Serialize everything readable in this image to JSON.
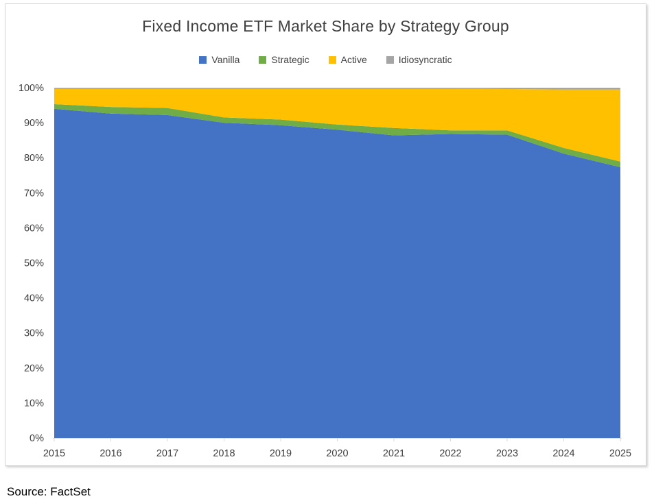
{
  "source_note": "Source: FactSet",
  "chart_data": {
    "type": "area",
    "stacked": true,
    "stacked_to_100_percent": true,
    "title": "Fixed Income ETF Market Share by Strategy Group",
    "xlabel": "",
    "ylabel": "",
    "grid": false,
    "legend_position": "top",
    "ylim": [
      0,
      100
    ],
    "ytick_step": 10,
    "ytick_labels": [
      "0%",
      "10%",
      "20%",
      "30%",
      "40%",
      "50%",
      "60%",
      "70%",
      "80%",
      "90%",
      "100%"
    ],
    "x": [
      2015,
      2016,
      2017,
      2018,
      2019,
      2020,
      2021,
      2022,
      2023,
      2024,
      2025
    ],
    "xtick_labels": [
      "2015",
      "2016",
      "2017",
      "2018",
      "2019",
      "2020",
      "2021",
      "2022",
      "2023",
      "2024",
      "2025"
    ],
    "series": [
      {
        "name": "Vanilla",
        "color": "#4472C4",
        "values": [
          94.0,
          92.6,
          92.2,
          90.0,
          89.3,
          88.0,
          86.4,
          86.8,
          86.6,
          81.2,
          77.3
        ]
      },
      {
        "name": "Strategic",
        "color": "#70AD47",
        "values": [
          1.3,
          1.9,
          2.0,
          1.5,
          1.6,
          1.5,
          2.1,
          1.0,
          1.2,
          1.6,
          1.6
        ]
      },
      {
        "name": "Active",
        "color": "#FFC000",
        "values": [
          4.4,
          5.2,
          5.5,
          8.2,
          8.8,
          10.2,
          11.2,
          11.9,
          11.8,
          16.7,
          20.6
        ]
      },
      {
        "name": "Idiosyncratic",
        "color": "#A5A5A5",
        "values": [
          0.3,
          0.3,
          0.3,
          0.3,
          0.3,
          0.3,
          0.3,
          0.3,
          0.4,
          0.5,
          0.5
        ]
      }
    ],
    "axis_color": "#D9D9D9",
    "text_color": "#404040"
  }
}
